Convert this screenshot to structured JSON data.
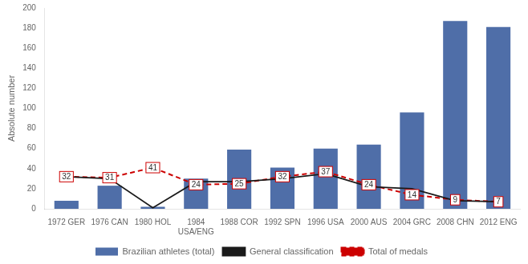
{
  "chart_data": {
    "type": "bar",
    "categories": [
      "1972 GER",
      "1976 CAN",
      "1980 HOL",
      "1984\nUSA/ENG",
      "1988 COR",
      "1992 SPN",
      "1996 USA",
      "2000 AUS",
      "2004 GRC",
      "2008 CHN",
      "2012 ENG"
    ],
    "series": [
      {
        "name": "Brazilian athletes (total)",
        "type": "bar",
        "color": "#4f6ea8",
        "values": [
          8,
          23,
          2,
          30,
          59,
          41,
          60,
          64,
          96,
          187,
          181
        ]
      },
      {
        "name": "General classification",
        "type": "line",
        "color": "#1a1a1a",
        "line_style": "solid",
        "marker": "none",
        "values": [
          32,
          30,
          1,
          27,
          27,
          30,
          35,
          22,
          20,
          8,
          7
        ]
      },
      {
        "name": "Total of medals",
        "type": "line",
        "color": "#cc0000",
        "line_style": "dashed",
        "marker": "none",
        "data_labels": true,
        "values": [
          32,
          31,
          41,
          24,
          25,
          32,
          37,
          24,
          14,
          9,
          7
        ]
      }
    ],
    "ylabel": "Absolute number",
    "ylim": [
      0,
      200
    ],
    "yticks": [
      0,
      20,
      40,
      60,
      80,
      100,
      120,
      140,
      160,
      180,
      200
    ],
    "grid": false,
    "legend": "bottom"
  }
}
